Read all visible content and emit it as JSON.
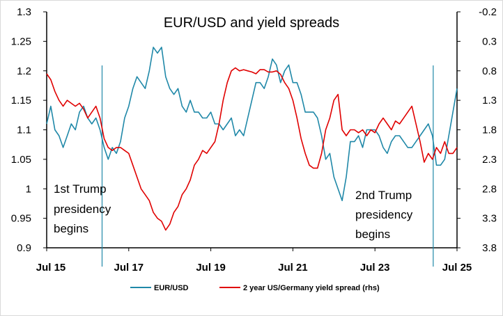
{
  "chart_data": {
    "type": "line",
    "title": "EUR/USD and yield spreads",
    "x_ticks": [
      "Jul 15",
      "Jul 17",
      "Jul 19",
      "Jul 21",
      "Jul 23",
      "Jul 25"
    ],
    "x_tick_years": [
      2015.5,
      2017.5,
      2019.5,
      2021.5,
      2023.5,
      2025.5
    ],
    "x_range": [
      2015.5,
      2025.5
    ],
    "y_left": {
      "range": [
        0.9,
        1.3
      ],
      "ticks": [
        "0.9",
        "0.95",
        "1",
        "1.05",
        "1.1",
        "1.15",
        "1.2",
        "1.25",
        "1.3"
      ],
      "tick_values": [
        0.9,
        0.95,
        1.0,
        1.05,
        1.1,
        1.15,
        1.2,
        1.25,
        1.3
      ]
    },
    "y_right": {
      "range": [
        -0.2,
        3.8
      ],
      "inverted": true,
      "ticks": [
        "-0.2",
        "0.3",
        "0.8",
        "1.3",
        "1.8",
        "2.3",
        "2.8",
        "3.3",
        "3.8"
      ],
      "tick_values": [
        -0.2,
        0.3,
        0.8,
        1.3,
        1.8,
        2.3,
        2.8,
        3.3,
        3.8
      ]
    },
    "legend_position": "bottom",
    "colors": {
      "eurusd": "#1f88a8",
      "spread": "#e00000",
      "marker": "#1f88a8"
    },
    "series": [
      {
        "name": "EUR/USD",
        "axis": "left",
        "x": [
          2015.5,
          2015.6,
          2015.7,
          2015.8,
          2015.9,
          2016.0,
          2016.1,
          2016.2,
          2016.3,
          2016.4,
          2016.5,
          2016.6,
          2016.7,
          2016.8,
          2016.9,
          2017.0,
          2017.1,
          2017.2,
          2017.3,
          2017.4,
          2017.5,
          2017.6,
          2017.7,
          2017.8,
          2017.9,
          2018.0,
          2018.1,
          2018.2,
          2018.3,
          2018.4,
          2018.5,
          2018.6,
          2018.7,
          2018.8,
          2018.9,
          2019.0,
          2019.1,
          2019.2,
          2019.3,
          2019.4,
          2019.5,
          2019.6,
          2019.7,
          2019.8,
          2019.9,
          2020.0,
          2020.1,
          2020.2,
          2020.3,
          2020.4,
          2020.5,
          2020.6,
          2020.7,
          2020.8,
          2020.9,
          2021.0,
          2021.1,
          2021.2,
          2021.3,
          2021.4,
          2021.5,
          2021.6,
          2021.7,
          2021.8,
          2021.9,
          2022.0,
          2022.1,
          2022.2,
          2022.3,
          2022.4,
          2022.5,
          2022.6,
          2022.7,
          2022.8,
          2022.9,
          2023.0,
          2023.1,
          2023.2,
          2023.3,
          2023.4,
          2023.5,
          2023.6,
          2023.7,
          2023.8,
          2023.9,
          2024.0,
          2024.1,
          2024.2,
          2024.3,
          2024.4,
          2024.5,
          2024.6,
          2024.7,
          2024.8,
          2024.9,
          2025.0,
          2025.1,
          2025.2,
          2025.3,
          2025.4,
          2025.5
        ],
        "values": [
          1.11,
          1.14,
          1.1,
          1.09,
          1.07,
          1.09,
          1.11,
          1.1,
          1.13,
          1.14,
          1.12,
          1.11,
          1.12,
          1.1,
          1.07,
          1.05,
          1.07,
          1.06,
          1.08,
          1.12,
          1.14,
          1.17,
          1.19,
          1.18,
          1.17,
          1.2,
          1.24,
          1.23,
          1.24,
          1.19,
          1.17,
          1.16,
          1.17,
          1.14,
          1.13,
          1.15,
          1.13,
          1.13,
          1.12,
          1.12,
          1.13,
          1.11,
          1.11,
          1.1,
          1.11,
          1.12,
          1.09,
          1.1,
          1.09,
          1.12,
          1.15,
          1.18,
          1.18,
          1.17,
          1.19,
          1.22,
          1.21,
          1.18,
          1.2,
          1.21,
          1.18,
          1.18,
          1.16,
          1.13,
          1.13,
          1.13,
          1.12,
          1.09,
          1.05,
          1.06,
          1.02,
          1.0,
          0.98,
          1.02,
          1.08,
          1.08,
          1.09,
          1.07,
          1.1,
          1.1,
          1.1,
          1.09,
          1.07,
          1.06,
          1.08,
          1.09,
          1.09,
          1.08,
          1.07,
          1.07,
          1.08,
          1.09,
          1.1,
          1.11,
          1.09,
          1.04,
          1.04,
          1.05,
          1.09,
          1.13,
          1.17
        ]
      },
      {
        "name": "2 year US/Germany yield spread (rhs)",
        "axis": "right",
        "x": [
          2015.5,
          2015.6,
          2015.7,
          2015.8,
          2015.9,
          2016.0,
          2016.1,
          2016.2,
          2016.3,
          2016.4,
          2016.5,
          2016.6,
          2016.7,
          2016.8,
          2016.9,
          2017.0,
          2017.1,
          2017.2,
          2017.3,
          2017.4,
          2017.5,
          2017.6,
          2017.7,
          2017.8,
          2017.9,
          2018.0,
          2018.1,
          2018.2,
          2018.3,
          2018.4,
          2018.5,
          2018.6,
          2018.7,
          2018.8,
          2018.9,
          2019.0,
          2019.1,
          2019.2,
          2019.3,
          2019.4,
          2019.5,
          2019.6,
          2019.7,
          2019.8,
          2019.9,
          2020.0,
          2020.1,
          2020.2,
          2020.3,
          2020.4,
          2020.5,
          2020.6,
          2020.7,
          2020.8,
          2020.9,
          2021.0,
          2021.1,
          2021.2,
          2021.3,
          2021.4,
          2021.5,
          2021.6,
          2021.7,
          2021.8,
          2021.9,
          2022.0,
          2022.1,
          2022.2,
          2022.3,
          2022.4,
          2022.5,
          2022.6,
          2022.7,
          2022.8,
          2022.9,
          2023.0,
          2023.1,
          2023.2,
          2023.3,
          2023.4,
          2023.5,
          2023.6,
          2023.7,
          2023.8,
          2023.9,
          2024.0,
          2024.1,
          2024.2,
          2024.3,
          2024.4,
          2024.5,
          2024.6,
          2024.7,
          2024.8,
          2024.9,
          2025.0,
          2025.1,
          2025.2,
          2025.3,
          2025.4,
          2025.5
        ],
        "values": [
          0.85,
          0.95,
          1.15,
          1.3,
          1.4,
          1.3,
          1.35,
          1.4,
          1.35,
          1.45,
          1.6,
          1.5,
          1.4,
          1.6,
          1.95,
          2.1,
          2.15,
          2.1,
          2.1,
          2.15,
          2.2,
          2.4,
          2.6,
          2.8,
          2.9,
          3.0,
          3.2,
          3.3,
          3.35,
          3.5,
          3.4,
          3.2,
          3.1,
          2.9,
          2.8,
          2.65,
          2.4,
          2.3,
          2.15,
          2.2,
          2.1,
          2.0,
          1.7,
          1.3,
          1.0,
          0.8,
          0.75,
          0.8,
          0.78,
          0.8,
          0.82,
          0.85,
          0.78,
          0.78,
          0.82,
          0.82,
          0.8,
          0.86,
          1.0,
          1.1,
          1.3,
          1.6,
          1.95,
          2.2,
          2.4,
          2.45,
          2.45,
          2.2,
          1.8,
          1.6,
          1.3,
          1.2,
          1.8,
          1.9,
          1.8,
          1.8,
          1.85,
          1.8,
          1.9,
          1.8,
          1.85,
          1.7,
          1.6,
          1.7,
          1.8,
          1.65,
          1.7,
          1.6,
          1.5,
          1.4,
          1.7,
          2.0,
          2.35,
          2.2,
          2.3,
          2.1,
          2.2,
          2.0,
          2.2,
          2.2,
          2.1
        ]
      }
    ],
    "vertical_markers": [
      2016.85,
      2024.92
    ],
    "annotations": [
      {
        "lines": [
          "1st Trump",
          "presidency",
          "begins"
        ]
      },
      {
        "lines": [
          "2nd Trump",
          "presidency",
          "begins"
        ]
      }
    ]
  }
}
